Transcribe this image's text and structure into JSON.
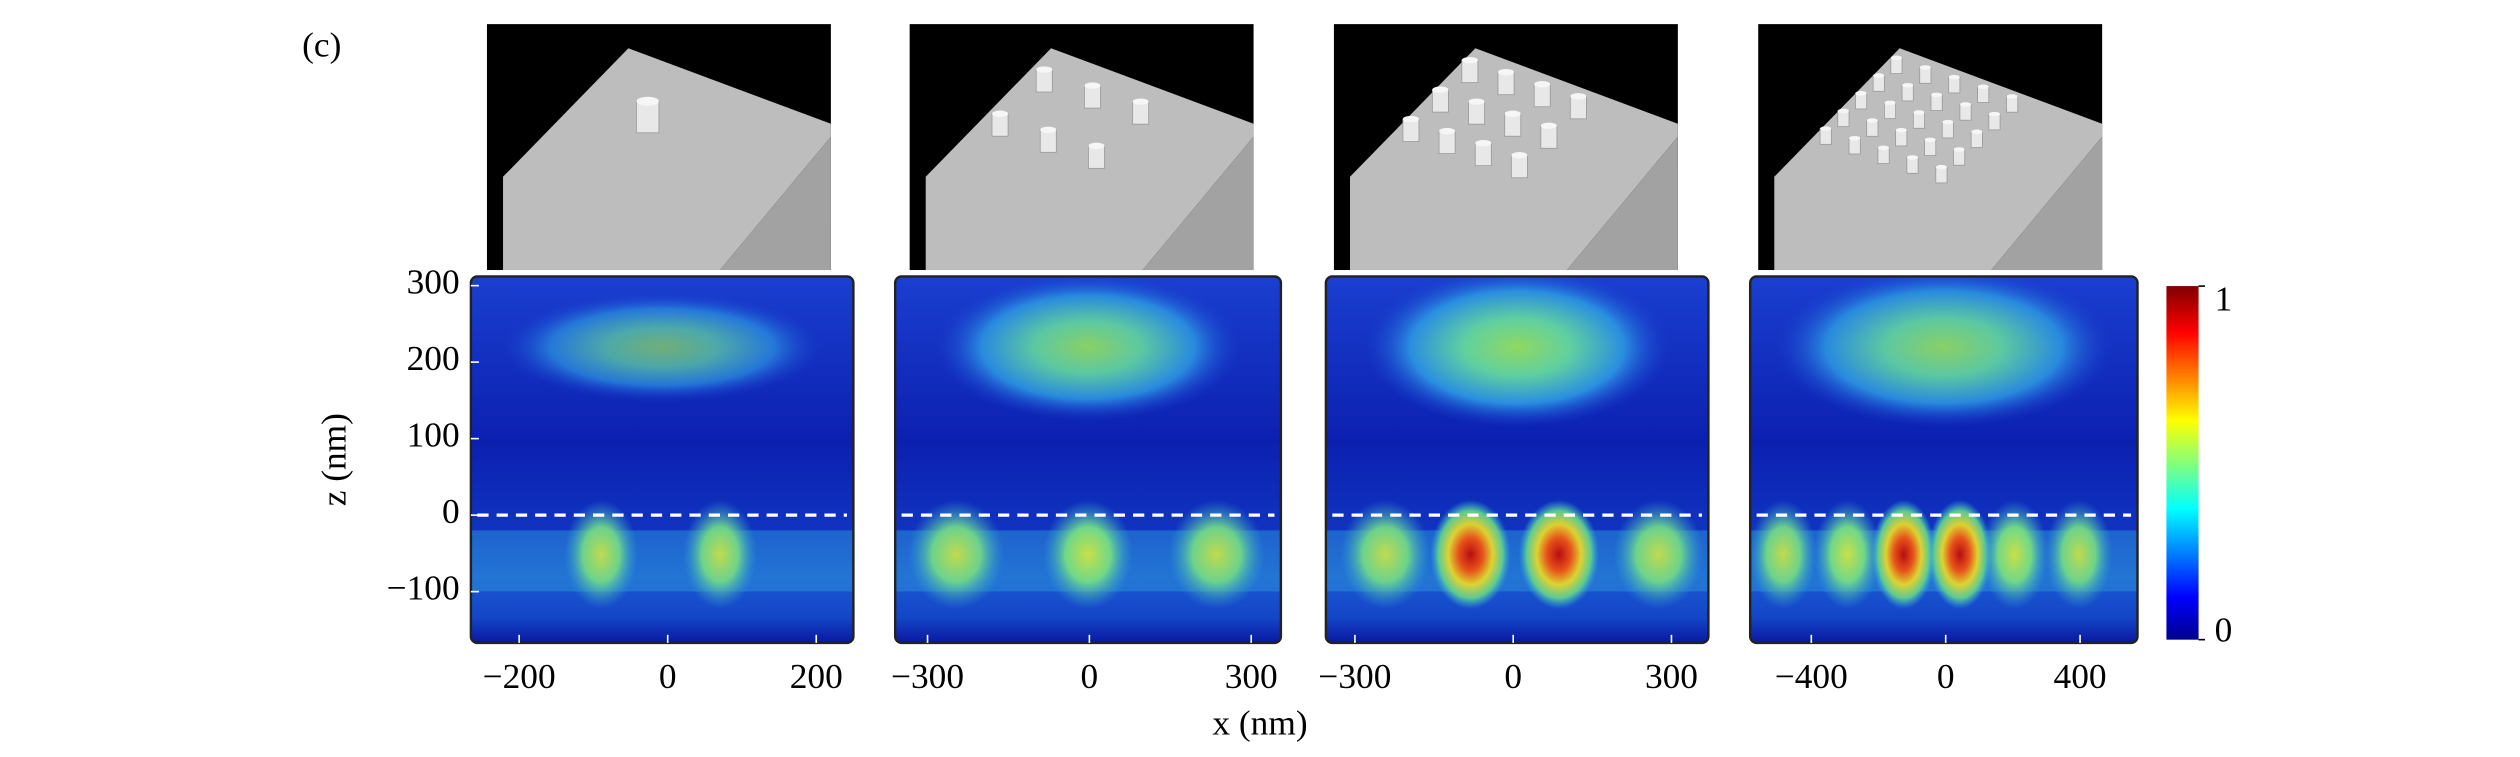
{
  "label": "(c)",
  "x_label": "x (nm)",
  "colorbar": {
    "lim": [
      0,
      1
    ],
    "ticks": [
      0,
      1
    ]
  },
  "chart_data": [
    {
      "type": "heatmap",
      "xlim": [
        -265,
        250
      ],
      "xticks": [
        {
          "value": -200,
          "label": "−200"
        },
        0,
        200
      ],
      "ylim": [
        -167,
        312
      ],
      "yticks": [
        {
          "value": -100,
          "label": "−100"
        },
        0,
        100,
        200,
        300
      ],
      "y_label": "z (nm)"
    },
    {
      "type": "heatmap",
      "xlim": [
        -360,
        355
      ],
      "xticks": [
        {
          "value": -300,
          "label": "−300"
        },
        0,
        300
      ],
      "ylim": [
        -167,
        312
      ]
    },
    {
      "type": "heatmap",
      "xlim": [
        -355,
        370
      ],
      "xticks": [
        {
          "value": -300,
          "label": "−300"
        },
        0,
        300
      ],
      "ylim": [
        -167,
        312
      ]
    },
    {
      "type": "heatmap",
      "xlim": [
        -582,
        571
      ],
      "xticks": [
        {
          "value": -400,
          "label": "−400"
        },
        0,
        400
      ],
      "ylim": [
        -167,
        312
      ]
    }
  ]
}
